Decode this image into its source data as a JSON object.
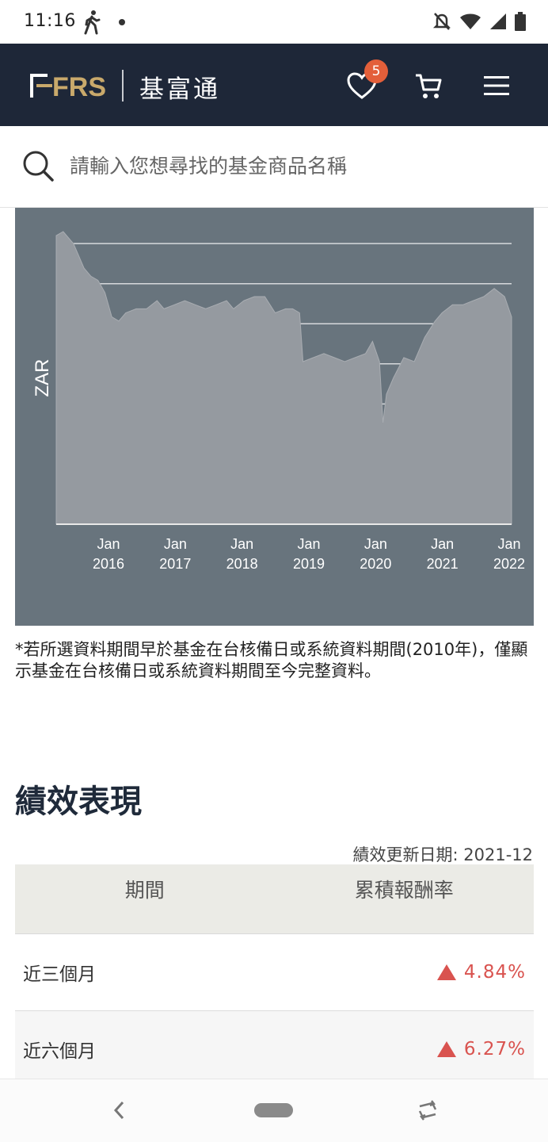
{
  "status_bar": {
    "time": "11:16"
  },
  "header": {
    "logo_text": "FRS",
    "brand": "基富通",
    "wishlist_count": "5"
  },
  "search": {
    "placeholder": "請輸入您想尋找的基金商品名稱"
  },
  "chart_data": {
    "type": "area",
    "ylabel": "ZAR",
    "x_tick_labels": [
      {
        "month": "Jan",
        "year": "2016"
      },
      {
        "month": "Jan",
        "year": "2017"
      },
      {
        "month": "Jan",
        "year": "2018"
      },
      {
        "month": "Jan",
        "year": "2019"
      },
      {
        "month": "Jan",
        "year": "2020"
      },
      {
        "month": "Jan",
        "year": "2021"
      },
      {
        "month": "Jan",
        "year": "2022"
      }
    ],
    "grid": true,
    "ylim": [
      0,
      7.2
    ],
    "series": [
      {
        "x": [
          2015.45,
          2015.55,
          2015.7,
          2015.85,
          2015.95,
          2016.05,
          2016.15,
          2016.25,
          2016.35,
          2016.45,
          2016.6,
          2016.75,
          2016.9,
          2017.0,
          2017.15,
          2017.3,
          2017.45,
          2017.6,
          2017.75,
          2017.9,
          2018.0,
          2018.15,
          2018.3,
          2018.45,
          2018.6,
          2018.75,
          2018.85,
          2018.95,
          2019.0,
          2019.15,
          2019.3,
          2019.45,
          2019.6,
          2019.75,
          2019.9,
          2020.0,
          2020.1,
          2020.15,
          2020.2,
          2020.3,
          2020.45,
          2020.6,
          2020.75,
          2020.9,
          2021.0,
          2021.15,
          2021.3,
          2021.45,
          2021.6,
          2021.75,
          2021.9,
          2022.0
        ],
        "values": [
          7.1,
          7.2,
          6.9,
          6.3,
          6.1,
          6.0,
          5.7,
          5.1,
          5.0,
          5.2,
          5.3,
          5.3,
          5.5,
          5.3,
          5.4,
          5.5,
          5.4,
          5.3,
          5.4,
          5.5,
          5.3,
          5.5,
          5.6,
          5.6,
          5.2,
          5.3,
          5.3,
          5.2,
          4.0,
          4.1,
          4.2,
          4.1,
          4.0,
          4.1,
          4.2,
          4.5,
          4.0,
          2.5,
          3.2,
          3.6,
          4.1,
          4.0,
          4.6,
          5.0,
          5.2,
          5.4,
          5.4,
          5.5,
          5.6,
          5.8,
          5.6,
          5.1
        ]
      }
    ]
  },
  "note": "*若所選資料期間早於基金在台核備日或系統資料期間(2010年)，僅顯示基金在台核備日或系統資料期間至今完整資料。",
  "performance": {
    "title": "績效表現",
    "update_label": "績效更新日期: 2021-12",
    "col_period": "期間",
    "col_return": "累積報酬率",
    "rows": [
      {
        "period": "近三個月",
        "return": "4.84%"
      },
      {
        "period": "近六個月",
        "return": "6.27%"
      }
    ]
  },
  "colors": {
    "header_bg": "#1e2738",
    "accent": "#c9a96b",
    "badge": "#e35f3a",
    "positive": "#d9534f",
    "chart_bg": "#68747d",
    "chart_area": "#959aa0"
  }
}
